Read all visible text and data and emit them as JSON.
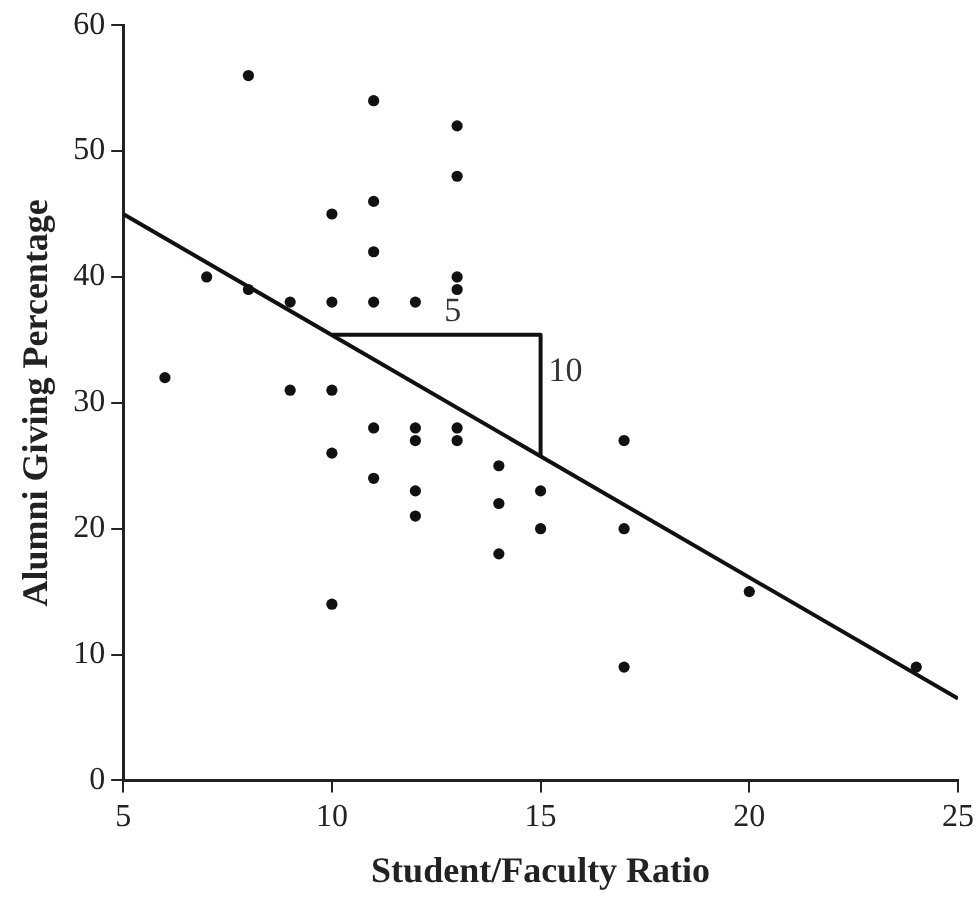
{
  "chart_data": {
    "type": "scatter",
    "xlabel": "Student/Faculty Ratio",
    "ylabel": "Alumni Giving Percentage",
    "xlim": [
      5,
      25
    ],
    "xticks": [
      5,
      10,
      15,
      20,
      25
    ],
    "ylim": [
      0,
      60
    ],
    "yticks": [
      0,
      10,
      20,
      30,
      40,
      50,
      60
    ],
    "grid": false,
    "legend": false,
    "marker": "circle",
    "series": [
      {
        "color": "#111111",
        "x": [
          6,
          7,
          8,
          8,
          9,
          9,
          10,
          10,
          10,
          10,
          10,
          11,
          11,
          11,
          11,
          11,
          11,
          12,
          12,
          12,
          12,
          12,
          13,
          13,
          13,
          13,
          13,
          13,
          14,
          14,
          14,
          15,
          15,
          17,
          17,
          17,
          20,
          24
        ],
        "values": [
          32,
          40,
          56,
          39,
          38,
          31,
          45,
          38,
          31,
          26,
          14,
          54,
          46,
          42,
          38,
          28,
          24,
          38,
          28,
          27,
          23,
          21,
          52,
          48,
          40,
          39,
          28,
          27,
          25,
          22,
          18,
          23,
          20,
          27,
          20,
          9,
          15,
          9
        ]
      },
      {
        "type": "line",
        "color": "#111111",
        "marker": "none",
        "x": [
          5,
          25
        ],
        "values": [
          45,
          6.5
        ]
      },
      {
        "type": "line",
        "color": "#111111",
        "marker": "none",
        "x": [
          10,
          15,
          15
        ],
        "values": [
          35.4,
          35.4,
          25.8
        ]
      }
    ],
    "annotations": [
      {
        "text": "5",
        "x": 12.5,
        "y": 35.4
      },
      {
        "text": "10",
        "x": 15,
        "y": 30.6
      }
    ]
  }
}
